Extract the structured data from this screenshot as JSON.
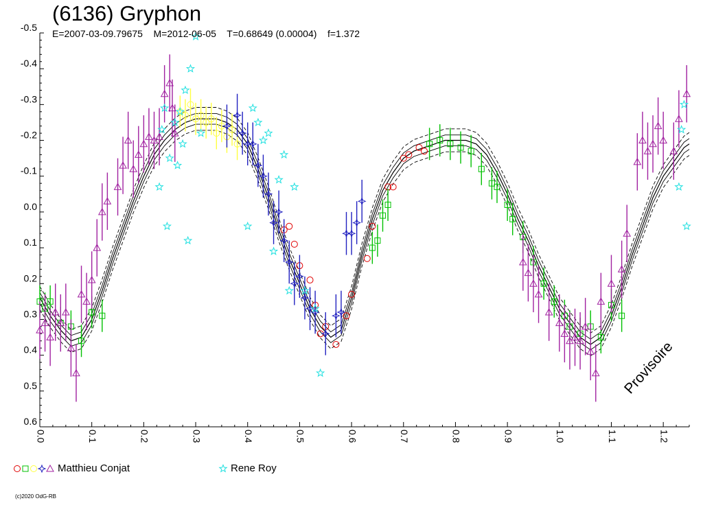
{
  "title": "(6136) Gryphon",
  "subtitle": "E=2007-03-09.79675    M=2012-06-05    T=0.68649 (0.00004)    f=1.372",
  "watermark": "Provisoire",
  "copyright": "(c)2020 OdG-RB",
  "legend": [
    {
      "label": "Matthieu Conjat",
      "symbols": [
        "circle",
        "square",
        "circle",
        "star4",
        "triangle"
      ],
      "colors": [
        "#e00000",
        "#00c000",
        "#ffff40",
        "#2020c0",
        "#a020a0"
      ]
    },
    {
      "label": "Rene Roy",
      "symbols": [
        "star5"
      ],
      "colors": [
        "#20e0e0"
      ]
    }
  ],
  "chart_data": {
    "type": "scatter",
    "xlabel": "",
    "ylabel": "",
    "xlim": [
      0.0,
      1.25
    ],
    "ylim": [
      -0.5,
      0.6
    ],
    "y_inverted": true,
    "x_ticks": [
      "0.0",
      "0.1",
      "0.2",
      "0.3",
      "0.4",
      "0.5",
      "0.6",
      "0.7",
      "0.8",
      "0.9",
      "1.0",
      "1.1",
      "1.2"
    ],
    "y_ticks": [
      "-0.5",
      "-0.4",
      "-0.3",
      "-0.2",
      "-0.1",
      "0.0",
      "0.1",
      "0.2",
      "0.3",
      "0.4",
      "0.5",
      "0.6"
    ],
    "fit_curve": {
      "x": [
        0.0,
        0.02,
        0.04,
        0.06,
        0.08,
        0.1,
        0.12,
        0.14,
        0.16,
        0.18,
        0.2,
        0.22,
        0.24,
        0.26,
        0.28,
        0.3,
        0.32,
        0.34,
        0.36,
        0.38,
        0.4,
        0.42,
        0.44,
        0.46,
        0.48,
        0.5,
        0.52,
        0.54,
        0.56,
        0.58,
        0.6,
        0.62,
        0.64,
        0.66,
        0.68,
        0.7,
        0.72,
        0.74,
        0.76,
        0.78,
        0.8,
        0.82,
        0.84,
        0.86,
        0.88,
        0.9,
        0.92,
        0.94,
        0.96,
        0.98,
        1.0,
        1.02,
        1.04,
        1.06,
        1.08,
        1.1,
        1.12,
        1.14,
        1.16,
        1.18,
        1.2,
        1.22,
        1.24,
        1.25
      ],
      "y": [
        0.24,
        0.29,
        0.33,
        0.36,
        0.35,
        0.3,
        0.22,
        0.13,
        0.05,
        -0.03,
        -0.1,
        -0.16,
        -0.2,
        -0.23,
        -0.25,
        -0.26,
        -0.26,
        -0.26,
        -0.25,
        -0.23,
        -0.19,
        -0.12,
        -0.04,
        0.05,
        0.13,
        0.2,
        0.27,
        0.32,
        0.35,
        0.33,
        0.24,
        0.12,
        0.02,
        -0.06,
        -0.11,
        -0.15,
        -0.17,
        -0.18,
        -0.19,
        -0.2,
        -0.2,
        -0.2,
        -0.19,
        -0.16,
        -0.11,
        -0.05,
        0.02,
        0.08,
        0.15,
        0.21,
        0.27,
        0.31,
        0.35,
        0.37,
        0.35,
        0.29,
        0.21,
        0.12,
        0.04,
        -0.04,
        -0.1,
        -0.14,
        -0.18,
        -0.19
      ]
    },
    "series": [
      {
        "name": "Matthieu Conjat",
        "marker": "circle",
        "color": "#e00000",
        "x": [
          0.47,
          0.48,
          0.49,
          0.5,
          0.52,
          0.53,
          0.54,
          0.55,
          0.57,
          0.59,
          0.6,
          0.63,
          0.64,
          0.67,
          0.68,
          0.7,
          0.71,
          0.73,
          0.74
        ],
        "y": [
          0.05,
          0.04,
          0.09,
          0.15,
          0.19,
          0.26,
          0.34,
          0.32,
          0.37,
          0.29,
          0.23,
          0.13,
          0.04,
          -0.07,
          -0.07,
          -0.15,
          -0.16,
          -0.18,
          -0.17
        ]
      },
      {
        "name": "Matthieu Conjat",
        "marker": "square",
        "color": "#00c000",
        "x": [
          0.0,
          0.01,
          0.02,
          0.04,
          0.06,
          0.08,
          0.1,
          0.12,
          0.64,
          0.65,
          0.66,
          0.67,
          0.75,
          0.77,
          0.79,
          0.81,
          0.83,
          0.85,
          0.87,
          0.88,
          0.9,
          0.91,
          0.93,
          0.95,
          0.97,
          0.99,
          1.01,
          1.02,
          1.04,
          1.06,
          1.08,
          1.1,
          1.12
        ],
        "y": [
          0.25,
          0.27,
          0.25,
          0.31,
          0.32,
          0.36,
          0.28,
          0.29,
          0.1,
          0.08,
          0.01,
          -0.02,
          -0.19,
          -0.2,
          -0.19,
          -0.18,
          -0.17,
          -0.12,
          -0.08,
          -0.07,
          -0.02,
          0.02,
          0.07,
          0.14,
          0.2,
          0.25,
          0.29,
          0.32,
          0.34,
          0.32,
          0.35,
          0.26,
          0.29
        ]
      },
      {
        "name": "Matthieu Conjat",
        "marker": "circle",
        "color": "#ffff40",
        "x": [
          0.27,
          0.28,
          0.29,
          0.3,
          0.31,
          0.32,
          0.33,
          0.34,
          0.35,
          0.36,
          0.37,
          0.38
        ],
        "y": [
          -0.28,
          -0.27,
          -0.3,
          -0.26,
          -0.27,
          -0.25,
          -0.26,
          -0.22,
          -0.24,
          -0.21,
          -0.23,
          -0.19
        ]
      },
      {
        "name": "Matthieu Conjat",
        "marker": "star4",
        "color": "#2020c0",
        "x": [
          0.36,
          0.38,
          0.39,
          0.4,
          0.41,
          0.42,
          0.43,
          0.44,
          0.45,
          0.46,
          0.47,
          0.48,
          0.49,
          0.5,
          0.51,
          0.52,
          0.53,
          0.55,
          0.57,
          0.58,
          0.59,
          0.6,
          0.61,
          0.62
        ],
        "y": [
          -0.24,
          -0.27,
          -0.22,
          -0.19,
          -0.19,
          -0.13,
          -0.1,
          -0.05,
          0.03,
          0.0,
          0.08,
          0.14,
          0.2,
          0.18,
          0.24,
          0.27,
          0.28,
          0.34,
          0.29,
          0.28,
          0.06,
          0.06,
          0.03,
          -0.03
        ]
      },
      {
        "name": "Matthieu Conjat",
        "marker": "triangle",
        "color": "#a020a0",
        "x": [
          0.0,
          0.01,
          0.02,
          0.03,
          0.04,
          0.05,
          0.06,
          0.07,
          0.08,
          0.09,
          0.1,
          0.11,
          0.12,
          0.13,
          0.15,
          0.16,
          0.17,
          0.18,
          0.19,
          0.2,
          0.21,
          0.22,
          0.23,
          0.24,
          0.25,
          0.255,
          0.26,
          0.93,
          0.94,
          0.95,
          0.96,
          0.98,
          1.0,
          1.01,
          1.02,
          1.03,
          1.04,
          1.05,
          1.06,
          1.07,
          1.08,
          1.1,
          1.12,
          1.13,
          1.15,
          1.16,
          1.17,
          1.18,
          1.19,
          1.2,
          1.22,
          1.23,
          1.245
        ],
        "y": [
          0.33,
          0.31,
          0.35,
          0.28,
          0.31,
          0.28,
          0.38,
          0.45,
          0.23,
          0.25,
          0.19,
          0.1,
          0.0,
          -0.03,
          -0.07,
          -0.13,
          -0.2,
          -0.12,
          -0.16,
          -0.19,
          -0.21,
          -0.2,
          -0.21,
          -0.33,
          -0.36,
          -0.29,
          -0.22,
          0.14,
          0.17,
          0.2,
          0.23,
          0.28,
          0.31,
          0.34,
          0.36,
          0.35,
          0.36,
          0.32,
          0.39,
          0.45,
          0.25,
          0.2,
          0.16,
          0.06,
          -0.14,
          -0.2,
          -0.17,
          -0.19,
          -0.24,
          -0.2,
          -0.17,
          -0.26,
          -0.33
        ]
      },
      {
        "name": "Rene Roy",
        "marker": "star5",
        "color": "#20e0e0",
        "x": [
          0.23,
          0.235,
          0.24,
          0.245,
          0.25,
          0.26,
          0.265,
          0.27,
          0.275,
          0.28,
          0.285,
          0.29,
          0.3,
          0.31,
          0.4,
          0.41,
          0.42,
          0.43,
          0.44,
          0.45,
          0.46,
          0.47,
          0.48,
          0.49,
          0.51,
          0.53,
          0.54,
          1.23,
          1.235,
          1.24,
          1.245
        ],
        "y": [
          -0.07,
          -0.23,
          -0.29,
          0.04,
          -0.15,
          -0.25,
          -0.13,
          -0.28,
          -0.19,
          -0.34,
          0.08,
          -0.4,
          -0.49,
          -0.22,
          0.04,
          -0.29,
          -0.25,
          -0.2,
          -0.22,
          0.11,
          -0.09,
          -0.16,
          0.22,
          -0.07,
          0.22,
          0.27,
          0.45,
          -0.07,
          -0.23,
          -0.3,
          0.04
        ]
      }
    ]
  }
}
